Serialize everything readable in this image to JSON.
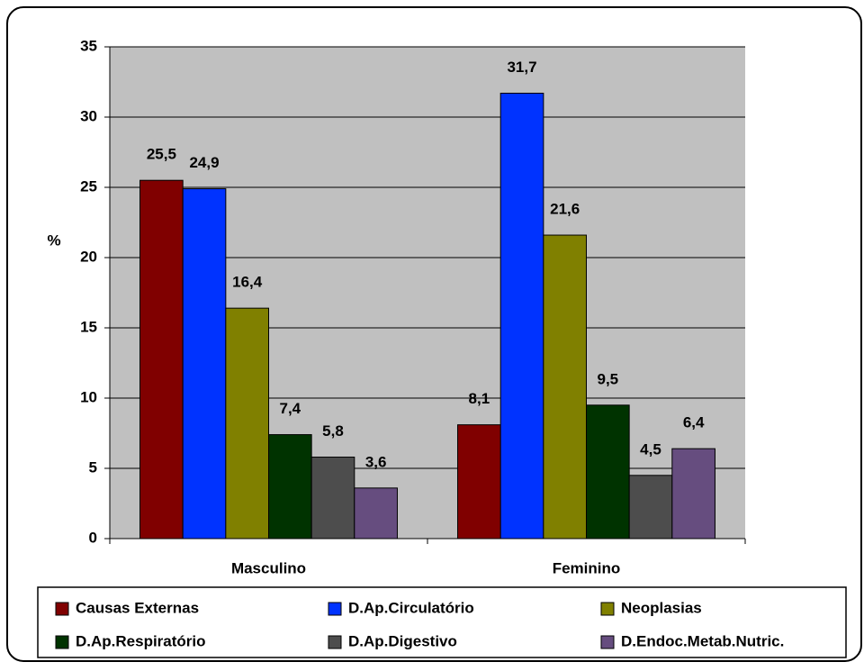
{
  "chart_data": {
    "type": "bar",
    "y_label": "%",
    "categories": [
      "Masculino",
      "Feminino"
    ],
    "series": [
      {
        "name": "Causas Externas",
        "color": "#800000",
        "values": [
          25.5,
          8.1
        ],
        "value_labels": [
          "25,5",
          "8,1"
        ]
      },
      {
        "name": "D.Ap.Circulatório",
        "color": "#0033ff",
        "values": [
          24.9,
          31.7
        ],
        "value_labels": [
          "24,9",
          "31,7"
        ]
      },
      {
        "name": "Neoplasias",
        "color": "#808000",
        "values": [
          16.4,
          21.6
        ],
        "value_labels": [
          "16,4",
          "21,6"
        ]
      },
      {
        "name": "D.Ap.Respiratório",
        "color": "#003300",
        "values": [
          7.4,
          9.5
        ],
        "value_labels": [
          "7,4",
          "9,5"
        ]
      },
      {
        "name": "D.Ap.Digestivo",
        "color": "#4d4d4d",
        "values": [
          5.8,
          4.5
        ],
        "value_labels": [
          "5,8",
          "4,5"
        ]
      },
      {
        "name": "D.Endoc.Metab.Nutric.",
        "color": "#664d7f",
        "values": [
          3.6,
          6.4
        ],
        "value_labels": [
          "3,6",
          "6,4"
        ]
      }
    ],
    "ylim": [
      0,
      35
    ],
    "yticks": [
      0,
      5,
      10,
      15,
      20,
      25,
      30,
      35
    ],
    "grid": true
  }
}
